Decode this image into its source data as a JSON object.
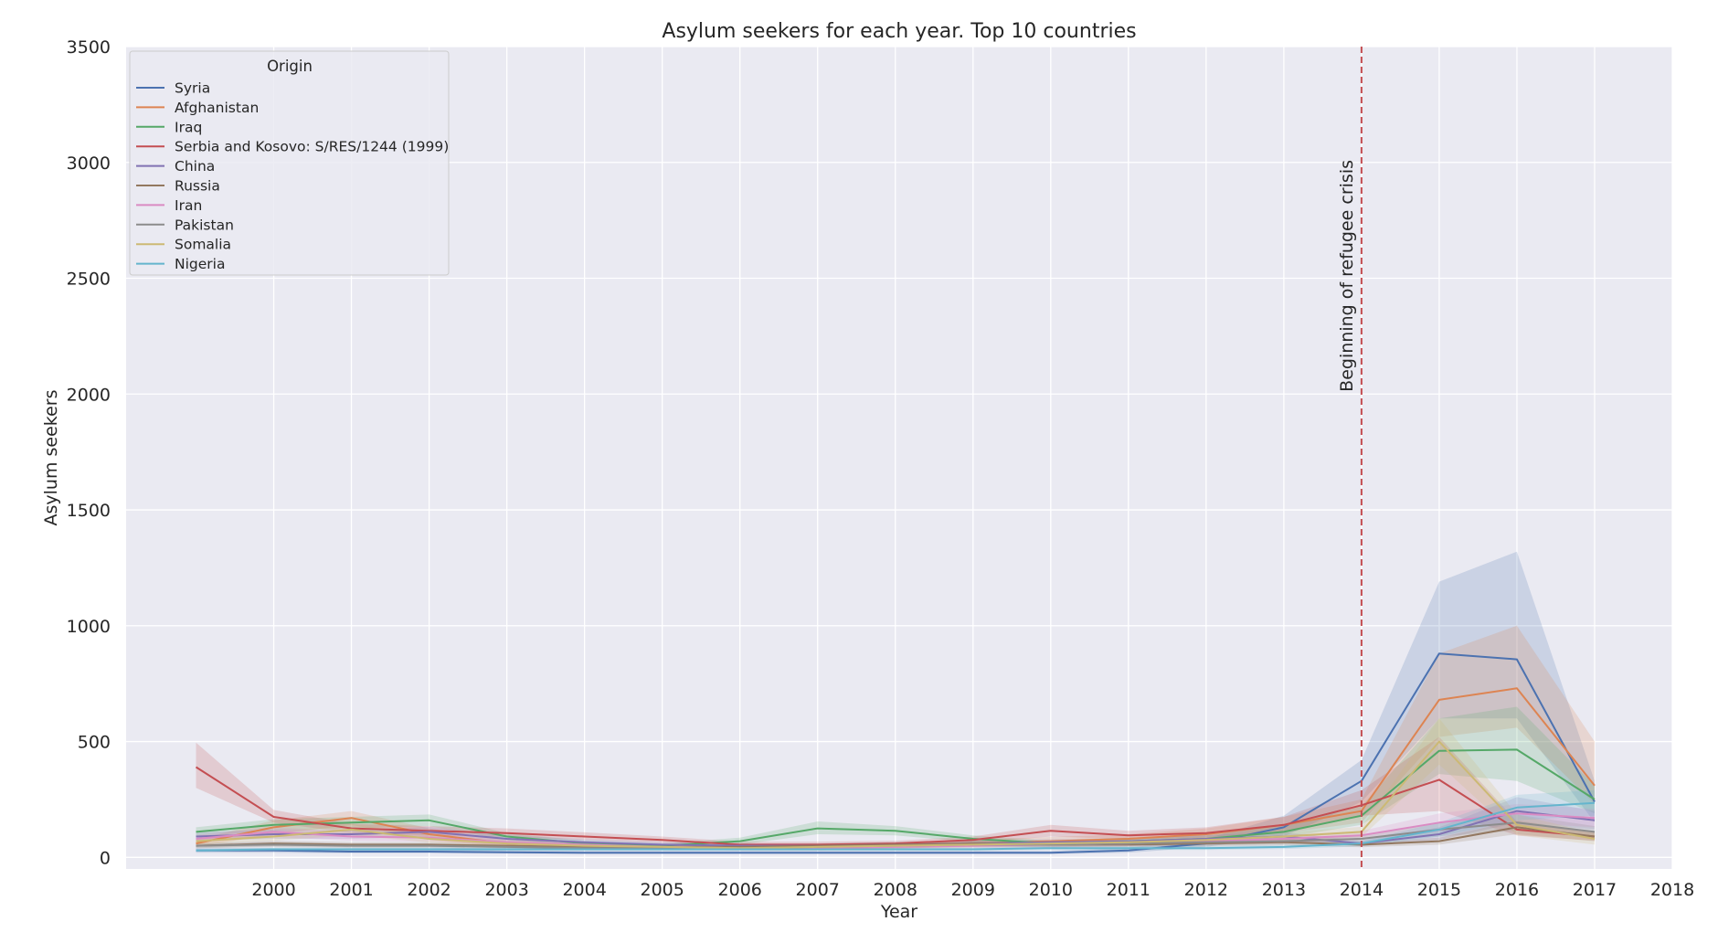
{
  "chart_data": {
    "type": "line",
    "title": "Asylum seekers for each year. Top 10 countries",
    "xlabel": "Year",
    "ylabel": "Asylum seekers",
    "xlim": [
      1998.1,
      2018
    ],
    "ylim": [
      -50,
      3500
    ],
    "x_ticks": [
      2000,
      2001,
      2002,
      2003,
      2004,
      2005,
      2006,
      2007,
      2008,
      2009,
      2010,
      2011,
      2012,
      2013,
      2014,
      2015,
      2016,
      2017,
      2018
    ],
    "y_ticks": [
      0,
      500,
      1000,
      1500,
      2000,
      2500,
      3000,
      3500
    ],
    "grid": true,
    "legend": {
      "title": "Origin",
      "position": "top-left"
    },
    "x": [
      1999,
      2000,
      2001,
      2002,
      2003,
      2004,
      2005,
      2006,
      2007,
      2008,
      2009,
      2010,
      2011,
      2012,
      2013,
      2014,
      2015,
      2016,
      2017
    ],
    "series": [
      {
        "name": "Syria",
        "color": "#4c72b0",
        "values": [
          30,
          30,
          25,
          25,
          22,
          20,
          20,
          20,
          20,
          20,
          20,
          20,
          30,
          60,
          130,
          330,
          880,
          855,
          240
        ],
        "ci_low": [
          20,
          20,
          18,
          18,
          16,
          14,
          14,
          14,
          14,
          14,
          14,
          14,
          20,
          45,
          90,
          240,
          600,
          600,
          150
        ],
        "ci_high": [
          40,
          40,
          35,
          35,
          30,
          28,
          28,
          28,
          28,
          28,
          28,
          28,
          42,
          80,
          180,
          420,
          1190,
          1320,
          330
        ]
      },
      {
        "name": "Afghanistan",
        "color": "#dd8452",
        "values": [
          60,
          130,
          170,
          100,
          60,
          50,
          45,
          40,
          40,
          50,
          60,
          70,
          80,
          100,
          140,
          200,
          680,
          730,
          310
        ],
        "ci_low": [
          45,
          100,
          140,
          75,
          45,
          38,
          34,
          30,
          30,
          38,
          45,
          52,
          60,
          75,
          105,
          150,
          520,
          560,
          230
        ],
        "ci_high": [
          75,
          160,
          200,
          125,
          75,
          62,
          56,
          50,
          50,
          62,
          75,
          88,
          100,
          125,
          175,
          250,
          880,
          1000,
          500
        ]
      },
      {
        "name": "Iraq",
        "color": "#55a868",
        "values": [
          110,
          140,
          150,
          160,
          90,
          60,
          50,
          70,
          125,
          115,
          80,
          60,
          70,
          80,
          110,
          180,
          460,
          465,
          250
        ],
        "ci_low": [
          90,
          115,
          125,
          135,
          75,
          50,
          40,
          55,
          100,
          95,
          65,
          48,
          55,
          65,
          85,
          140,
          360,
          330,
          190
        ],
        "ci_high": [
          130,
          165,
          175,
          185,
          105,
          72,
          60,
          85,
          155,
          135,
          95,
          72,
          85,
          95,
          135,
          220,
          600,
          650,
          310
        ]
      },
      {
        "name": "Serbia and Kosovo: S/RES/1244 (1999)",
        "color": "#c44e52",
        "values": [
          390,
          175,
          125,
          115,
          105,
          90,
          75,
          55,
          55,
          60,
          75,
          115,
          95,
          105,
          140,
          225,
          335,
          120,
          90
        ],
        "ci_low": [
          300,
          150,
          105,
          95,
          88,
          75,
          62,
          45,
          45,
          50,
          62,
          90,
          78,
          85,
          110,
          180,
          200,
          95,
          72
        ],
        "ci_high": [
          495,
          205,
          145,
          135,
          125,
          108,
          90,
          68,
          68,
          72,
          90,
          140,
          115,
          130,
          175,
          290,
          520,
          155,
          110
        ]
      },
      {
        "name": "China",
        "color": "#8172b3",
        "values": [
          90,
          100,
          100,
          110,
          80,
          65,
          55,
          50,
          50,
          55,
          60,
          65,
          70,
          80,
          90,
          60,
          100,
          200,
          160
        ],
        "ci_low": [
          72,
          80,
          80,
          88,
          64,
          52,
          44,
          40,
          40,
          44,
          48,
          52,
          56,
          64,
          72,
          48,
          75,
          150,
          120
        ],
        "ci_high": [
          108,
          120,
          120,
          132,
          96,
          78,
          66,
          60,
          60,
          66,
          72,
          78,
          84,
          96,
          108,
          72,
          130,
          260,
          200
        ]
      },
      {
        "name": "Russia",
        "color": "#937860",
        "values": [
          50,
          60,
          55,
          55,
          50,
          45,
          45,
          45,
          50,
          55,
          60,
          55,
          55,
          60,
          65,
          55,
          70,
          130,
          90
        ],
        "ci_low": [
          40,
          48,
          44,
          44,
          40,
          36,
          36,
          36,
          40,
          44,
          48,
          44,
          44,
          48,
          52,
          44,
          55,
          100,
          70
        ],
        "ci_high": [
          60,
          72,
          66,
          66,
          60,
          54,
          54,
          54,
          60,
          66,
          72,
          66,
          66,
          72,
          78,
          66,
          85,
          160,
          110
        ]
      },
      {
        "name": "Iran",
        "color": "#da8bc3",
        "values": [
          80,
          110,
          90,
          85,
          65,
          55,
          45,
          40,
          40,
          45,
          50,
          55,
          60,
          70,
          80,
          95,
          150,
          190,
          170
        ],
        "ci_low": [
          64,
          88,
          72,
          68,
          52,
          44,
          36,
          32,
          32,
          36,
          40,
          44,
          48,
          56,
          64,
          76,
          110,
          150,
          130
        ],
        "ci_high": [
          96,
          132,
          108,
          102,
          78,
          66,
          54,
          48,
          48,
          54,
          60,
          66,
          72,
          84,
          96,
          114,
          190,
          230,
          210
        ]
      },
      {
        "name": "Pakistan",
        "color": "#8c8c8c",
        "values": [
          50,
          55,
          50,
          50,
          45,
          40,
          40,
          40,
          45,
          50,
          55,
          55,
          60,
          65,
          70,
          80,
          120,
          150,
          110
        ],
        "ci_low": [
          40,
          44,
          40,
          40,
          36,
          32,
          32,
          32,
          36,
          40,
          44,
          44,
          48,
          52,
          56,
          64,
          90,
          115,
          85
        ],
        "ci_high": [
          60,
          66,
          60,
          60,
          54,
          48,
          48,
          48,
          54,
          60,
          66,
          66,
          72,
          78,
          84,
          96,
          150,
          185,
          135
        ]
      },
      {
        "name": "Somalia",
        "color": "#ccb974",
        "values": [
          70,
          90,
          120,
          80,
          60,
          50,
          45,
          40,
          45,
          50,
          55,
          60,
          65,
          75,
          90,
          110,
          500,
          140,
          80
        ],
        "ci_low": [
          56,
          72,
          96,
          64,
          48,
          40,
          36,
          32,
          36,
          40,
          44,
          48,
          52,
          60,
          72,
          88,
          400,
          95,
          55
        ],
        "ci_high": [
          84,
          108,
          144,
          96,
          72,
          60,
          54,
          48,
          54,
          60,
          66,
          72,
          78,
          90,
          108,
          132,
          600,
          185,
          105
        ]
      },
      {
        "name": "Nigeria",
        "color": "#64b5cd",
        "values": [
          30,
          35,
          35,
          35,
          35,
          35,
          35,
          35,
          35,
          35,
          35,
          40,
          40,
          40,
          45,
          60,
          120,
          215,
          235
        ],
        "ci_low": [
          24,
          28,
          28,
          28,
          28,
          28,
          28,
          28,
          28,
          28,
          28,
          32,
          32,
          32,
          36,
          48,
          90,
          160,
          180
        ],
        "ci_high": [
          36,
          42,
          42,
          42,
          42,
          42,
          42,
          42,
          42,
          42,
          42,
          48,
          48,
          48,
          54,
          72,
          150,
          270,
          290
        ]
      }
    ],
    "annotations": [
      {
        "type": "vline",
        "x": 2014,
        "color": "#c44e52",
        "style": "dashed",
        "text": "Beginning of refugee crisis"
      }
    ]
  }
}
